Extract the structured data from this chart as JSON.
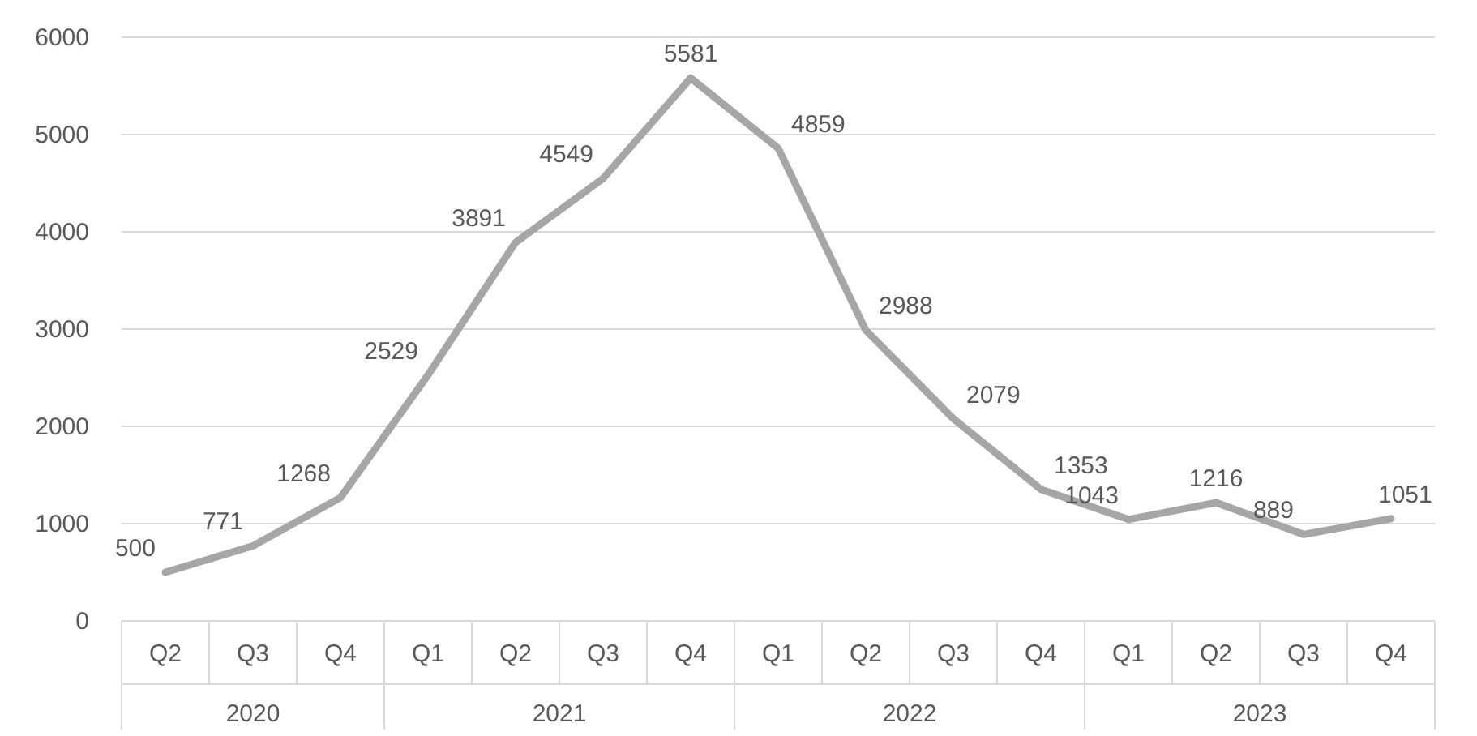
{
  "chart_data": {
    "type": "line",
    "categories": [
      "Q2",
      "Q3",
      "Q4",
      "Q1",
      "Q2",
      "Q3",
      "Q4",
      "Q1",
      "Q2",
      "Q3",
      "Q4",
      "Q1",
      "Q2",
      "Q3",
      "Q4"
    ],
    "series": [
      {
        "color": "#a6a6a6",
        "values": [
          500,
          771,
          1268,
          2529,
          3891,
          4549,
          5581,
          4859,
          2988,
          2079,
          1353,
          1043,
          1216,
          889,
          1051
        ]
      }
    ],
    "annotations": [
      "2020",
      "2021",
      "2022",
      "2023"
    ],
    "ylim": [
      0,
      6000
    ],
    "yticks": [
      0,
      1000,
      2000,
      3000,
      4000,
      5000,
      6000
    ],
    "grid": "y",
    "data_labels": true,
    "marker": "none",
    "line_style": "solid"
  }
}
